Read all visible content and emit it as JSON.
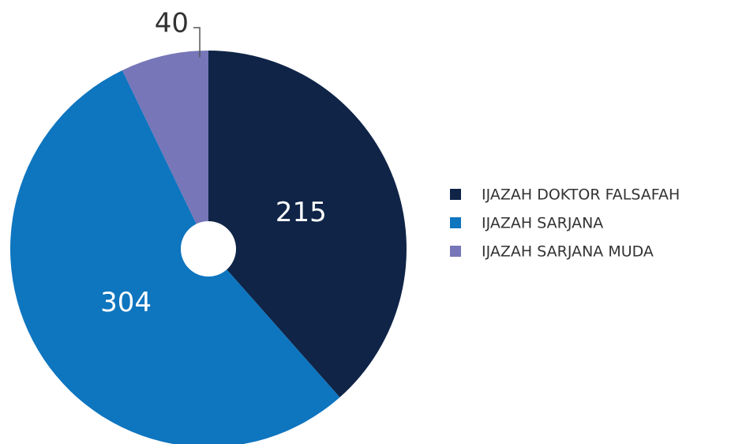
{
  "chart_data": {
    "type": "pie",
    "categories": [
      "IJAZAH DOKTOR FALSAFAH",
      "IJAZAH SARJANA",
      "IJAZAH SARJANA MUDA"
    ],
    "values": [
      215,
      304,
      40
    ],
    "colors": [
      "#0f2447",
      "#0e75bf",
      "#7676b8"
    ],
    "legend": "right"
  }
}
